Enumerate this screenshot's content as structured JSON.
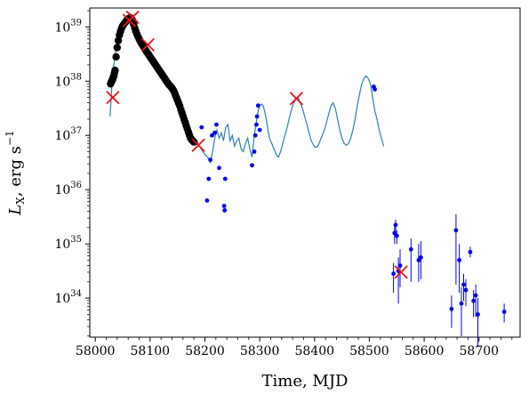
{
  "chart_data": {
    "type": "scatter",
    "xlabel": "Time, MJD",
    "ylabel_main": "L",
    "ylabel_sub": "X",
    "ylabel_unit": ", erg s",
    "ylabel_sup": "−1",
    "xlim": [
      57990,
      58775
    ],
    "ylim_log10": [
      33.28,
      39.35
    ],
    "yscale": "log",
    "x_ticks": [
      58000,
      58100,
      58200,
      58300,
      58400,
      58500,
      58600,
      58700
    ],
    "x_tick_labels": [
      "58000",
      "58100",
      "58200",
      "58300",
      "58400",
      "58500",
      "58600",
      "58700"
    ],
    "y_ticks_log10": [
      34,
      35,
      36,
      37,
      38,
      39
    ],
    "y_tick_base": "10",
    "y_tick_exps": [
      "34",
      "35",
      "36",
      "37",
      "38",
      "39"
    ],
    "colors": {
      "model_line": "#2a7fb0",
      "dense_points": "#000000",
      "sparse_points": "#0000ee",
      "crosses": "#ee1111"
    },
    "model_curve": {
      "x": [
        58027,
        58030,
        58033,
        58038,
        58043,
        58048,
        58052,
        58056,
        58060,
        58063,
        58066,
        58069,
        58072,
        58076,
        58080,
        58085,
        58090,
        58095,
        58100,
        58106,
        58112,
        58118,
        58124,
        58130,
        58136,
        58142,
        58146,
        58150,
        58154,
        58158,
        58162,
        58166,
        58170,
        58174,
        58178,
        58182,
        58186,
        58190,
        58195,
        58200,
        58205,
        58210,
        58214,
        58218,
        58222,
        58226,
        58230,
        58234,
        58238,
        58242,
        58246,
        58250,
        58254,
        58258,
        58262,
        58266,
        58270,
        58274,
        58278,
        58282,
        58286,
        58290,
        58294,
        58297,
        58300,
        58303,
        58306,
        58309,
        58312,
        58315,
        58318,
        58322,
        58326,
        58330,
        58334,
        58338,
        58342,
        58346,
        58350,
        58354,
        58358,
        58362,
        58366,
        58370,
        58374,
        58378,
        58382,
        58386,
        58390,
        58394,
        58398,
        58402,
        58406,
        58410,
        58414,
        58418,
        58422,
        58426,
        58430,
        58434,
        58438,
        58442,
        58446,
        58450,
        58454,
        58458,
        58462,
        58466,
        58470,
        58474,
        58478,
        58482,
        58486,
        58490,
        58494,
        58498,
        58502,
        58506,
        58510,
        58514,
        58518,
        58522,
        58526
      ],
      "log10_y": [
        37.35,
        37.9,
        38.25,
        38.6,
        38.8,
        38.95,
        39.02,
        39.1,
        39.2,
        39.25,
        39.17,
        39.02,
        38.92,
        38.82,
        38.76,
        38.67,
        38.62,
        38.55,
        38.47,
        38.38,
        38.3,
        38.22,
        38.14,
        38.07,
        38.0,
        37.9,
        37.82,
        37.7,
        37.55,
        37.38,
        37.2,
        37.08,
        37.0,
        36.95,
        36.92,
        36.9,
        36.88,
        36.8,
        36.72,
        36.65,
        36.6,
        36.5,
        36.7,
        36.95,
        37.1,
        36.95,
        37.05,
        36.9,
        37.15,
        37.2,
        36.9,
        37.0,
        36.8,
        36.9,
        36.95,
        36.75,
        36.7,
        36.85,
        36.95,
        36.75,
        36.6,
        37.0,
        37.25,
        37.45,
        37.55,
        37.58,
        37.55,
        37.45,
        37.3,
        37.1,
        36.95,
        36.85,
        36.75,
        36.65,
        36.6,
        36.7,
        36.85,
        37.0,
        37.15,
        37.32,
        37.48,
        37.6,
        37.68,
        37.7,
        37.6,
        37.5,
        37.35,
        37.2,
        37.05,
        36.9,
        36.82,
        36.78,
        36.8,
        36.9,
        37.0,
        37.1,
        37.25,
        37.4,
        37.55,
        37.6,
        37.5,
        37.3,
        37.1,
        36.95,
        36.85,
        36.82,
        36.85,
        36.95,
        37.1,
        37.3,
        37.55,
        37.75,
        37.95,
        38.05,
        38.1,
        38.05,
        37.95,
        37.7,
        37.45,
        37.3,
        37.1,
        36.95,
        36.8
      ]
    },
    "dense_points": {
      "x": [
        58028,
        58029,
        58030,
        58031,
        58032,
        58033,
        58034,
        58035,
        58036,
        58038,
        58040,
        58042,
        58044,
        58046,
        58048,
        58050,
        58052,
        58054,
        58056,
        58058,
        58060,
        58062,
        58064,
        58066,
        58068,
        58070,
        58072,
        58074,
        58076,
        58078,
        58080,
        58082,
        58084,
        58086,
        58088,
        58090,
        58092,
        58094,
        58096,
        58098,
        58100,
        58102,
        58104,
        58106,
        58108,
        58110,
        58112,
        58114,
        58116,
        58118,
        58120,
        58122,
        58124,
        58126,
        58128,
        58130,
        58132,
        58134,
        58136,
        58138,
        58140,
        58142,
        58144,
        58146,
        58148,
        58150,
        58152,
        58154,
        58156,
        58158,
        58160,
        58162,
        58164,
        58166,
        58168,
        58170,
        58172,
        58174,
        58176,
        58178,
        58180
      ],
      "log10_y": [
        37.95,
        37.98,
        38.0,
        38.02,
        38.05,
        38.08,
        38.1,
        38.15,
        38.2,
        38.45,
        38.62,
        38.75,
        38.85,
        38.92,
        38.98,
        39.02,
        39.05,
        39.08,
        39.1,
        39.13,
        39.15,
        39.16,
        39.17,
        39.15,
        39.12,
        39.05,
        38.98,
        38.92,
        38.87,
        38.82,
        38.78,
        38.74,
        38.7,
        38.67,
        38.64,
        38.6,
        38.57,
        38.54,
        38.51,
        38.48,
        38.45,
        38.42,
        38.39,
        38.36,
        38.33,
        38.3,
        38.27,
        38.24,
        38.21,
        38.18,
        38.15,
        38.12,
        38.09,
        38.06,
        38.03,
        38.0,
        37.97,
        37.94,
        37.92,
        37.9,
        37.87,
        37.84,
        37.8,
        37.75,
        37.7,
        37.65,
        37.6,
        37.55,
        37.48,
        37.42,
        37.36,
        37.3,
        37.24,
        37.18,
        37.12,
        37.06,
        37.0,
        36.95,
        36.92,
        36.9,
        36.88
      ]
    },
    "sparse_points": {
      "x": [
        58194,
        58204,
        58207,
        58210,
        58213,
        58218,
        58221,
        58226,
        58235,
        58236,
        58237,
        58286,
        58290,
        58292,
        58294,
        58295,
        58297,
        58300,
        58508,
        58510,
        58544,
        58546,
        58548,
        58550,
        58553,
        58556,
        58576,
        58590,
        58594,
        58650,
        58658,
        58664,
        58668,
        58672,
        58676,
        58684,
        58690,
        58694,
        58698,
        58746
      ],
      "log10_y": [
        37.15,
        35.8,
        36.2,
        36.55,
        37.0,
        37.05,
        37.2,
        36.4,
        35.7,
        35.62,
        36.2,
        36.45,
        36.7,
        37.0,
        37.2,
        37.35,
        37.55,
        37.1,
        37.9,
        37.85,
        34.45,
        35.2,
        35.35,
        35.15,
        34.5,
        34.6,
        34.9,
        34.7,
        34.75,
        33.8,
        35.25,
        34.7,
        33.9,
        34.25,
        34.15,
        34.85,
        33.95,
        34.05,
        33.7,
        33.75
      ],
      "err_up": [
        0,
        0,
        0,
        0,
        0,
        0,
        0,
        0,
        0,
        0,
        0,
        0,
        0,
        0,
        0,
        0,
        0,
        0,
        0,
        0,
        0.2,
        0.15,
        0.1,
        0.1,
        0.25,
        0.3,
        0.2,
        0.3,
        0.3,
        0.25,
        0.3,
        0.3,
        0.3,
        0.2,
        0.2,
        0.1,
        0.2,
        0.2,
        0.3,
        0.15
      ],
      "err_dn": [
        0,
        0,
        0,
        0,
        0,
        0,
        0,
        0,
        0,
        0,
        0,
        0,
        0,
        0,
        0,
        0,
        0,
        0,
        0,
        0,
        0.35,
        0.2,
        0.15,
        0.15,
        0.6,
        0.4,
        0.6,
        0.4,
        0.4,
        0.35,
        1.0,
        0.6,
        0.6,
        0.3,
        0.3,
        0.1,
        0.3,
        0.4,
        0.6,
        0.2
      ]
    },
    "crosses": {
      "x": [
        58032,
        58062,
        58068,
        58096,
        58188,
        58367,
        58558
      ],
      "log10_y": [
        37.7,
        39.12,
        39.18,
        38.67,
        36.82,
        37.68,
        34.48
      ]
    }
  }
}
